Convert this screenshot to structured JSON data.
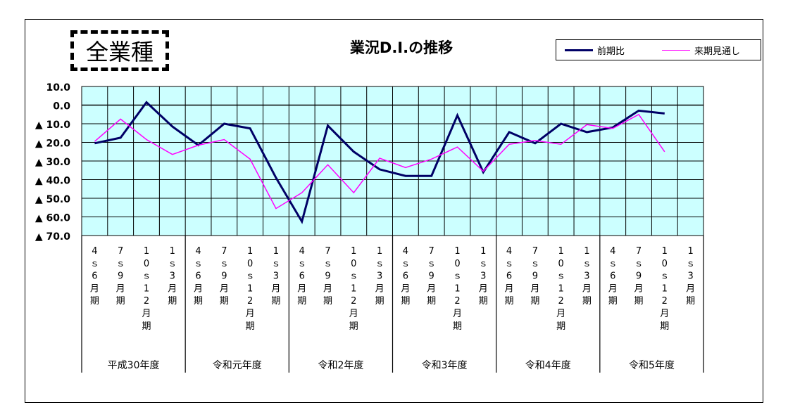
{
  "badge": "全業種",
  "chart_data": {
    "type": "line",
    "title": "業況D.I.の推移",
    "ylim": [
      -70,
      10
    ],
    "yticks": [
      {
        "value": 10,
        "label": "10.0"
      },
      {
        "value": 0,
        "label": "0.0"
      },
      {
        "value": -10,
        "label": "▲ 10.0"
      },
      {
        "value": -20,
        "label": "▲ 20.0"
      },
      {
        "value": -30,
        "label": "▲ 30.0"
      },
      {
        "value": -40,
        "label": "▲ 40.0"
      },
      {
        "value": -50,
        "label": "▲ 50.0"
      },
      {
        "value": -60,
        "label": "▲ 60.0"
      },
      {
        "value": -70,
        "label": "▲ 70.0"
      }
    ],
    "grid": true,
    "legend_position": "top-right",
    "plot_background": "#ccffff",
    "categories": [
      "4～6月期",
      "7～9月期",
      "10～12月期",
      "1～3月期",
      "4～6月期",
      "7～9月期",
      "10～12月期",
      "1～3月期",
      "4～6月期",
      "7～9月期",
      "10～12月期",
      "1～3月期",
      "4～6月期",
      "7～9月期",
      "10～12月期",
      "1～3月期",
      "4～6月期",
      "7～9月期",
      "10～12月期",
      "1～3月期",
      "4～6月期",
      "7～9月期",
      "10～12月期",
      "1～3月期"
    ],
    "category_labels": [
      [
        "4",
        "ｓ",
        "6",
        "月",
        "期"
      ],
      [
        "7",
        "ｓ",
        "9",
        "月",
        "期"
      ],
      [
        "1",
        "0",
        "ｓ",
        "1",
        "2",
        "月",
        "期"
      ],
      [
        "1",
        "ｓ",
        "3",
        "月",
        "期"
      ],
      [
        "4",
        "ｓ",
        "6",
        "月",
        "期"
      ],
      [
        "7",
        "ｓ",
        "9",
        "月",
        "期"
      ],
      [
        "1",
        "0",
        "ｓ",
        "1",
        "2",
        "月",
        "期"
      ],
      [
        "1",
        "ｓ",
        "3",
        "月",
        "期"
      ],
      [
        "4",
        "ｓ",
        "6",
        "月",
        "期"
      ],
      [
        "7",
        "ｓ",
        "9",
        "月",
        "期"
      ],
      [
        "1",
        "0",
        "ｓ",
        "1",
        "2",
        "月",
        "期"
      ],
      [
        "1",
        "ｓ",
        "3",
        "月",
        "期"
      ],
      [
        "4",
        "ｓ",
        "6",
        "月",
        "期"
      ],
      [
        "7",
        "ｓ",
        "9",
        "月",
        "期"
      ],
      [
        "1",
        "0",
        "ｓ",
        "1",
        "2",
        "月",
        "期"
      ],
      [
        "1",
        "ｓ",
        "3",
        "月",
        "期"
      ],
      [
        "4",
        "ｓ",
        "6",
        "月",
        "期"
      ],
      [
        "7",
        "ｓ",
        "9",
        "月",
        "期"
      ],
      [
        "1",
        "0",
        "ｓ",
        "1",
        "2",
        "月",
        "期"
      ],
      [
        "1",
        "ｓ",
        "3",
        "月",
        "期"
      ],
      [
        "4",
        "ｓ",
        "6",
        "月",
        "期"
      ],
      [
        "7",
        "ｓ",
        "9",
        "月",
        "期"
      ],
      [
        "1",
        "0",
        "ｓ",
        "1",
        "2",
        "月",
        "期"
      ],
      [
        "1",
        "ｓ",
        "3",
        "月",
        "期"
      ]
    ],
    "groups": [
      "平成30年度",
      "令和元年度",
      "令和2年度",
      "令和3年度",
      "令和4年度",
      "令和5年度"
    ],
    "series": [
      {
        "name": "前期比",
        "color": "#000066",
        "width": 3,
        "values": [
          -20.5,
          -17.5,
          1.5,
          -11.5,
          -21.5,
          -10.0,
          -12.5,
          -39.0,
          -62.5,
          -11.0,
          -25.0,
          -34.5,
          -38.0,
          -38.0,
          -5.5,
          -36.0,
          -14.5,
          -20.5,
          -10.0,
          -14.5,
          -12.0,
          -3.0,
          -4.5,
          null
        ]
      },
      {
        "name": "来期見通し",
        "color": "#ff00ff",
        "width": 1.5,
        "values": [
          -19.5,
          -7.5,
          -18.5,
          -26.5,
          -21.5,
          -18.5,
          -29.0,
          -55.5,
          -47.0,
          -32.0,
          -47.0,
          -28.5,
          -33.5,
          -29.0,
          -22.5,
          -35.5,
          -21.0,
          -19.0,
          -21.0,
          -10.5,
          -12.5,
          -5.0,
          -25.0,
          null
        ]
      }
    ]
  }
}
